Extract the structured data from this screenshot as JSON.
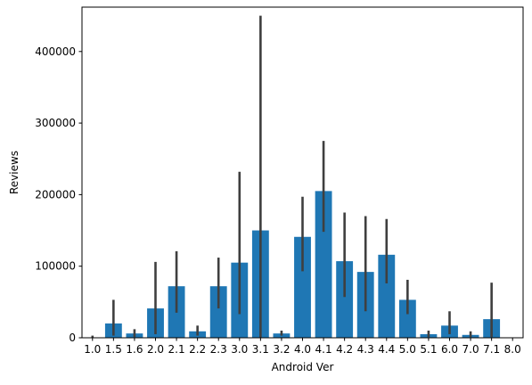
{
  "chart_data": {
    "type": "bar",
    "xlabel": "Android Ver",
    "ylabel": "Reviews",
    "ylim": [
      0,
      462000
    ],
    "yticks": [
      0,
      100000,
      200000,
      300000,
      400000
    ],
    "ytick_labels": [
      "0",
      "100000",
      "200000",
      "300000",
      "400000"
    ],
    "categories": [
      "1.0",
      "1.5",
      "1.6",
      "2.0",
      "2.1",
      "2.2",
      "2.3",
      "3.0",
      "3.1",
      "3.2",
      "4.0",
      "4.1",
      "4.2",
      "4.3",
      "4.4",
      "5.0",
      "5.1",
      "6.0",
      "7.0",
      "7.1",
      "8.0"
    ],
    "values": [
      0,
      20000,
      6000,
      41000,
      72000,
      9000,
      72000,
      105000,
      150000,
      6000,
      141000,
      205000,
      107000,
      92000,
      116000,
      53000,
      5000,
      17000,
      4000,
      26000,
      0
    ],
    "error_low": [
      0,
      3000,
      1000,
      5000,
      35000,
      3000,
      41000,
      33000,
      0,
      3000,
      93000,
      148000,
      57000,
      37000,
      76000,
      33000,
      1000,
      5000,
      1000,
      1000,
      0
    ],
    "error_high": [
      3000,
      53000,
      12000,
      106000,
      121000,
      17000,
      112000,
      232000,
      450000,
      10000,
      197000,
      275000,
      175000,
      170000,
      166000,
      81000,
      10000,
      37000,
      9000,
      77000,
      0
    ],
    "bar_color": "#1f77b4",
    "error_color": "#3f3f3f",
    "grid": false,
    "legend": "none"
  }
}
